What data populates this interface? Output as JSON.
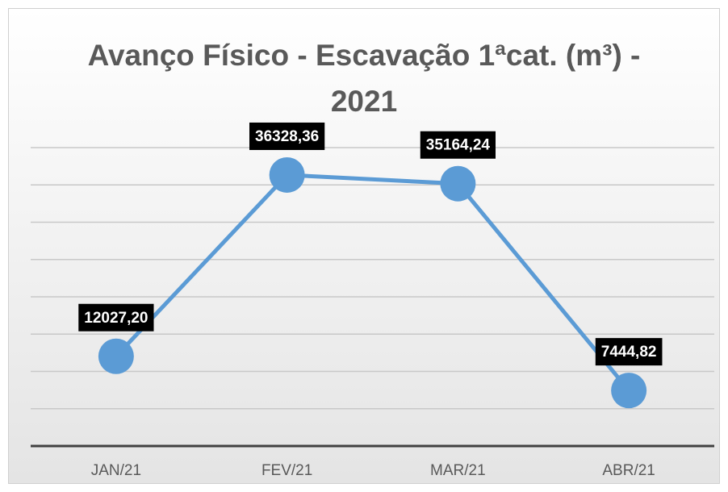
{
  "chart_data": {
    "type": "line",
    "title": "Avanço Físico - Escavação 1ªcat. (m³) - 2021",
    "categories": [
      "JAN/21",
      "FEV/21",
      "MAR/21",
      "ABR/21"
    ],
    "values": [
      12027.2,
      36328.36,
      35164.24,
      7444.82
    ],
    "value_labels": [
      "12027,20",
      "36328,36",
      "35164,24",
      "7444,82"
    ],
    "color": "#5b9bd5",
    "ylim": [
      0,
      40000
    ],
    "yticks": [
      0,
      5000,
      10000,
      15000,
      20000,
      25000,
      30000,
      35000,
      40000
    ],
    "grid": true
  }
}
